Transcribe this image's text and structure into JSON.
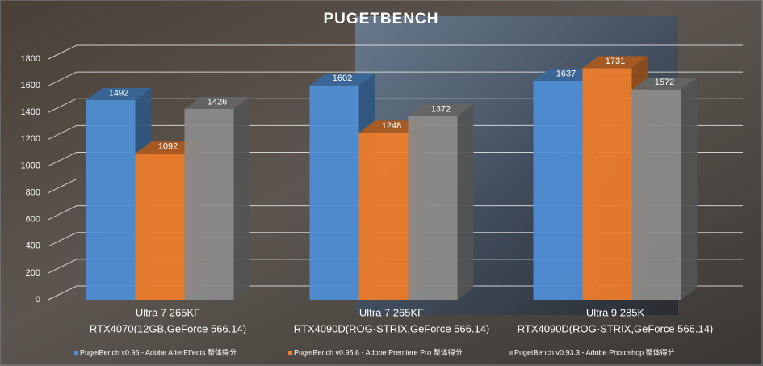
{
  "chart_data": {
    "type": "bar3d",
    "title": "PUGETBENCH",
    "categories": [
      [
        "Ultra 7 265KF",
        "RTX4070(12GB,GeForce 566.14)"
      ],
      [
        "Ultra 7 265KF",
        "RTX4090D(ROG-STRIX,GeForce 566.14)"
      ],
      [
        "Ultra 9 285K",
        "RTX4090D(ROG-STRIX,GeForce 566.14)"
      ]
    ],
    "series": [
      {
        "name": "PugetBench v0.96 - Adobe AfterEffects 整体得分",
        "color": "#4f8fd6",
        "values": [
          1492,
          1602,
          1637
        ]
      },
      {
        "name": "PugetBench v0.95.6 - Adobe Premiere Pro 整体得分",
        "color": "#f07d2a",
        "values": [
          1092,
          1248,
          1731
        ]
      },
      {
        "name": "PugetBench v0.93.3 - Adobe Photoshop 整体得分",
        "color": "#8c8c8c",
        "values": [
          1426,
          1372,
          1572
        ]
      }
    ],
    "ylim": [
      0,
      1800
    ],
    "yticks": [
      0,
      200,
      400,
      600,
      800,
      1000,
      1200,
      1400,
      1600,
      1800
    ],
    "grid": true,
    "legend": "bottom"
  }
}
